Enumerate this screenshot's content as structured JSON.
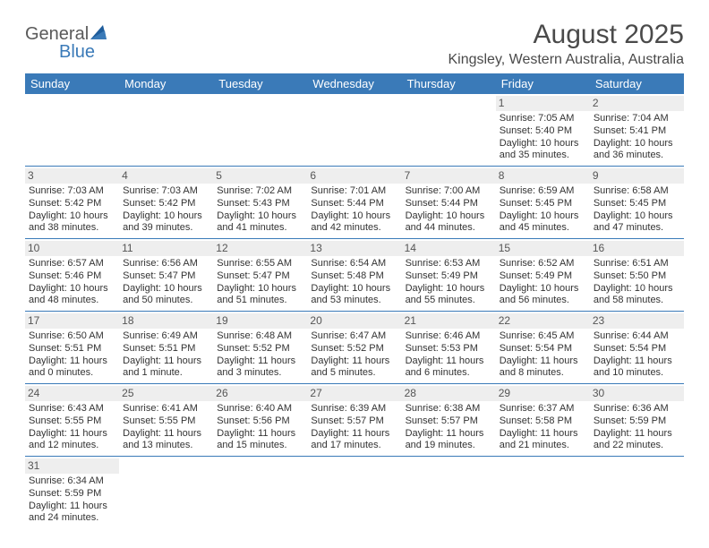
{
  "logo": {
    "text1": "General",
    "text2": "Blue"
  },
  "title": "August 2025",
  "location": "Kingsley, Western Australia, Australia",
  "colors": {
    "header_bg": "#3a7ab8",
    "header_text": "#ffffff",
    "daynum_bg": "#eeeeee",
    "border": "#3a7ab8",
    "logo_general": "#5a5a5a",
    "logo_blue": "#3a7ab8"
  },
  "dayHeaders": [
    "Sunday",
    "Monday",
    "Tuesday",
    "Wednesday",
    "Thursday",
    "Friday",
    "Saturday"
  ],
  "weeks": [
    [
      null,
      null,
      null,
      null,
      null,
      {
        "n": "1",
        "sr": "Sunrise: 7:05 AM",
        "ss": "Sunset: 5:40 PM",
        "d1": "Daylight: 10 hours",
        "d2": "and 35 minutes."
      },
      {
        "n": "2",
        "sr": "Sunrise: 7:04 AM",
        "ss": "Sunset: 5:41 PM",
        "d1": "Daylight: 10 hours",
        "d2": "and 36 minutes."
      }
    ],
    [
      {
        "n": "3",
        "sr": "Sunrise: 7:03 AM",
        "ss": "Sunset: 5:42 PM",
        "d1": "Daylight: 10 hours",
        "d2": "and 38 minutes."
      },
      {
        "n": "4",
        "sr": "Sunrise: 7:03 AM",
        "ss": "Sunset: 5:42 PM",
        "d1": "Daylight: 10 hours",
        "d2": "and 39 minutes."
      },
      {
        "n": "5",
        "sr": "Sunrise: 7:02 AM",
        "ss": "Sunset: 5:43 PM",
        "d1": "Daylight: 10 hours",
        "d2": "and 41 minutes."
      },
      {
        "n": "6",
        "sr": "Sunrise: 7:01 AM",
        "ss": "Sunset: 5:44 PM",
        "d1": "Daylight: 10 hours",
        "d2": "and 42 minutes."
      },
      {
        "n": "7",
        "sr": "Sunrise: 7:00 AM",
        "ss": "Sunset: 5:44 PM",
        "d1": "Daylight: 10 hours",
        "d2": "and 44 minutes."
      },
      {
        "n": "8",
        "sr": "Sunrise: 6:59 AM",
        "ss": "Sunset: 5:45 PM",
        "d1": "Daylight: 10 hours",
        "d2": "and 45 minutes."
      },
      {
        "n": "9",
        "sr": "Sunrise: 6:58 AM",
        "ss": "Sunset: 5:45 PM",
        "d1": "Daylight: 10 hours",
        "d2": "and 47 minutes."
      }
    ],
    [
      {
        "n": "10",
        "sr": "Sunrise: 6:57 AM",
        "ss": "Sunset: 5:46 PM",
        "d1": "Daylight: 10 hours",
        "d2": "and 48 minutes."
      },
      {
        "n": "11",
        "sr": "Sunrise: 6:56 AM",
        "ss": "Sunset: 5:47 PM",
        "d1": "Daylight: 10 hours",
        "d2": "and 50 minutes."
      },
      {
        "n": "12",
        "sr": "Sunrise: 6:55 AM",
        "ss": "Sunset: 5:47 PM",
        "d1": "Daylight: 10 hours",
        "d2": "and 51 minutes."
      },
      {
        "n": "13",
        "sr": "Sunrise: 6:54 AM",
        "ss": "Sunset: 5:48 PM",
        "d1": "Daylight: 10 hours",
        "d2": "and 53 minutes."
      },
      {
        "n": "14",
        "sr": "Sunrise: 6:53 AM",
        "ss": "Sunset: 5:49 PM",
        "d1": "Daylight: 10 hours",
        "d2": "and 55 minutes."
      },
      {
        "n": "15",
        "sr": "Sunrise: 6:52 AM",
        "ss": "Sunset: 5:49 PM",
        "d1": "Daylight: 10 hours",
        "d2": "and 56 minutes."
      },
      {
        "n": "16",
        "sr": "Sunrise: 6:51 AM",
        "ss": "Sunset: 5:50 PM",
        "d1": "Daylight: 10 hours",
        "d2": "and 58 minutes."
      }
    ],
    [
      {
        "n": "17",
        "sr": "Sunrise: 6:50 AM",
        "ss": "Sunset: 5:51 PM",
        "d1": "Daylight: 11 hours",
        "d2": "and 0 minutes."
      },
      {
        "n": "18",
        "sr": "Sunrise: 6:49 AM",
        "ss": "Sunset: 5:51 PM",
        "d1": "Daylight: 11 hours",
        "d2": "and 1 minute."
      },
      {
        "n": "19",
        "sr": "Sunrise: 6:48 AM",
        "ss": "Sunset: 5:52 PM",
        "d1": "Daylight: 11 hours",
        "d2": "and 3 minutes."
      },
      {
        "n": "20",
        "sr": "Sunrise: 6:47 AM",
        "ss": "Sunset: 5:52 PM",
        "d1": "Daylight: 11 hours",
        "d2": "and 5 minutes."
      },
      {
        "n": "21",
        "sr": "Sunrise: 6:46 AM",
        "ss": "Sunset: 5:53 PM",
        "d1": "Daylight: 11 hours",
        "d2": "and 6 minutes."
      },
      {
        "n": "22",
        "sr": "Sunrise: 6:45 AM",
        "ss": "Sunset: 5:54 PM",
        "d1": "Daylight: 11 hours",
        "d2": "and 8 minutes."
      },
      {
        "n": "23",
        "sr": "Sunrise: 6:44 AM",
        "ss": "Sunset: 5:54 PM",
        "d1": "Daylight: 11 hours",
        "d2": "and 10 minutes."
      }
    ],
    [
      {
        "n": "24",
        "sr": "Sunrise: 6:43 AM",
        "ss": "Sunset: 5:55 PM",
        "d1": "Daylight: 11 hours",
        "d2": "and 12 minutes."
      },
      {
        "n": "25",
        "sr": "Sunrise: 6:41 AM",
        "ss": "Sunset: 5:55 PM",
        "d1": "Daylight: 11 hours",
        "d2": "and 13 minutes."
      },
      {
        "n": "26",
        "sr": "Sunrise: 6:40 AM",
        "ss": "Sunset: 5:56 PM",
        "d1": "Daylight: 11 hours",
        "d2": "and 15 minutes."
      },
      {
        "n": "27",
        "sr": "Sunrise: 6:39 AM",
        "ss": "Sunset: 5:57 PM",
        "d1": "Daylight: 11 hours",
        "d2": "and 17 minutes."
      },
      {
        "n": "28",
        "sr": "Sunrise: 6:38 AM",
        "ss": "Sunset: 5:57 PM",
        "d1": "Daylight: 11 hours",
        "d2": "and 19 minutes."
      },
      {
        "n": "29",
        "sr": "Sunrise: 6:37 AM",
        "ss": "Sunset: 5:58 PM",
        "d1": "Daylight: 11 hours",
        "d2": "and 21 minutes."
      },
      {
        "n": "30",
        "sr": "Sunrise: 6:36 AM",
        "ss": "Sunset: 5:59 PM",
        "d1": "Daylight: 11 hours",
        "d2": "and 22 minutes."
      }
    ],
    [
      {
        "n": "31",
        "sr": "Sunrise: 6:34 AM",
        "ss": "Sunset: 5:59 PM",
        "d1": "Daylight: 11 hours",
        "d2": "and 24 minutes."
      },
      null,
      null,
      null,
      null,
      null,
      null
    ]
  ]
}
